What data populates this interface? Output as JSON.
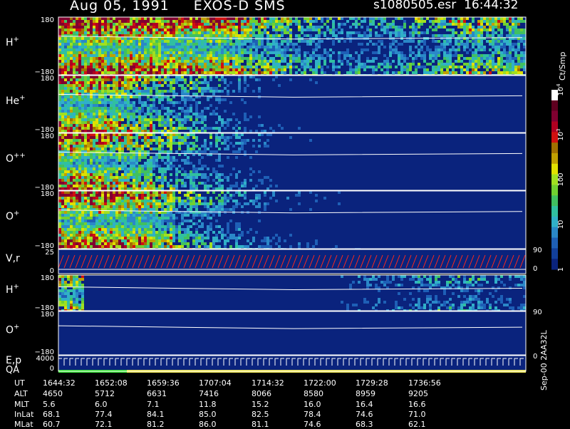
{
  "header": {
    "date": "Aug 05, 1991",
    "instrument": "EXOS-D SMS",
    "file": "s1080505.esr",
    "time": "16:44:32"
  },
  "colors": {
    "background": "#000000",
    "panel_fill": "#0a237d",
    "line": "#ffffff",
    "velocity_line": "#ff2a1a",
    "qa_good": "#33dd33",
    "qa_fair": "#e8e050"
  },
  "colorbar": {
    "unit": "Ct/Smp",
    "tick_labels": [
      {
        "text": "1",
        "value": 1
      },
      {
        "text": "10",
        "value": 10
      },
      {
        "text": "100",
        "value": 100
      },
      {
        "text": "10",
        "sup": "3",
        "value": 1000
      },
      {
        "text": "10",
        "sup": "4",
        "value": 10000
      }
    ],
    "colors": [
      "#0a237d",
      "#123f9a",
      "#1e5fb6",
      "#2a88c8",
      "#30b0c8",
      "#30c0a0",
      "#40c060",
      "#70d030",
      "#a0e020",
      "#e0e000",
      "#c0a000",
      "#a07000",
      "#d01010",
      "#b00020",
      "#800030",
      "#600020",
      "#ffffff"
    ]
  },
  "chart_data": [
    {
      "type": "heatmap",
      "panel": "H+ (upper)",
      "label": "H",
      "sup": "+",
      "ylim": [
        -180,
        180
      ],
      "y_ticks": [
        180,
        -180
      ],
      "intensity_profile": [
        0.9,
        0.9,
        0.9,
        0.85,
        0.85,
        0.8,
        0.75,
        0.7,
        0.6,
        0.5,
        0.4,
        0.35,
        0.3,
        0.3,
        0.35,
        0.4,
        0.5,
        0.6,
        0.55,
        0.5
      ]
    },
    {
      "type": "heatmap",
      "panel": "He+",
      "label": "He",
      "sup": "+",
      "ylim": [
        -180,
        180
      ],
      "y_ticks": [
        180,
        -180
      ],
      "intensity_profile": [
        0.8,
        0.75,
        0.7,
        0.6,
        0.5,
        0.4,
        0.3,
        0.2,
        0.15,
        0.1,
        0.1,
        0.08,
        0.05,
        0.05,
        0.05,
        0.05,
        0.04,
        0.04,
        0.03,
        0.03
      ]
    },
    {
      "type": "heatmap",
      "panel": "O++",
      "label": "O",
      "sup": "++",
      "ylim": [
        -180,
        180
      ],
      "y_ticks": [
        180,
        -180
      ],
      "intensity_profile": [
        0.85,
        0.8,
        0.7,
        0.6,
        0.5,
        0.4,
        0.3,
        0.22,
        0.15,
        0.1,
        0.08,
        0.06,
        0.05,
        0.05,
        0.04,
        0.04,
        0.03,
        0.03,
        0.02,
        0.02
      ]
    },
    {
      "type": "heatmap",
      "panel": "O+ (upper)",
      "label": "O",
      "sup": "+",
      "ylim": [
        -180,
        180
      ],
      "y_ticks": [
        180,
        -180
      ],
      "intensity_profile": [
        0.85,
        0.85,
        0.8,
        0.75,
        0.6,
        0.45,
        0.35,
        0.25,
        0.2,
        0.15,
        0.12,
        0.1,
        0.08,
        0.06,
        0.05,
        0.05,
        0.04,
        0.04,
        0.03,
        0.03
      ]
    },
    {
      "type": "line",
      "panel": "V,r",
      "label": "V,r",
      "ylim": [
        0,
        25
      ],
      "y_ticks": [
        25,
        0
      ],
      "right_ticks": [
        90,
        0
      ],
      "series_shape": "sawtooth"
    },
    {
      "type": "heatmap",
      "panel": "H+ (lower)",
      "label": "H",
      "sup": "+",
      "ylim": [
        -180,
        180
      ],
      "y_ticks": [
        180,
        -180
      ],
      "intensity_profile": [
        0.6,
        0.0,
        0.0,
        0.0,
        0.0,
        0.0,
        0.0,
        0.0,
        0.0,
        0.0,
        0.0,
        0.05,
        0.15,
        0.2,
        0.2,
        0.25,
        0.3,
        0.3,
        0.25,
        0.2
      ]
    },
    {
      "type": "heatmap",
      "panel": "O+ (lower)",
      "label": "O",
      "sup": "+",
      "ylim": [
        -180,
        180
      ],
      "y_ticks": [
        180,
        -180
      ],
      "right_ticks": [
        90
      ],
      "intensity_profile": [
        0,
        0,
        0,
        0,
        0,
        0,
        0,
        0,
        0,
        0,
        0,
        0,
        0,
        0,
        0,
        0,
        0,
        0,
        0,
        0
      ]
    },
    {
      "type": "line",
      "panel": "E,p QA",
      "label": "E,p",
      "label2": "QA",
      "ylim": [
        0,
        4000
      ],
      "y_ticks": [
        4000,
        0
      ],
      "right_ticks": [
        0
      ],
      "series_shape": "steps"
    }
  ],
  "ephemeris": {
    "row_labels": [
      "UT",
      "ALT",
      "MLT",
      "InLat",
      "MLat"
    ],
    "columns": [
      {
        "UT": "1644:32",
        "ALT": "4650",
        "MLT": "5.6",
        "InLat": "68.1",
        "MLat": "60.7"
      },
      {
        "UT": "1652:08",
        "ALT": "5712",
        "MLT": "6.0",
        "InLat": "77.4",
        "MLat": "72.1"
      },
      {
        "UT": "1659:36",
        "ALT": "6631",
        "MLT": "7.1",
        "InLat": "84.1",
        "MLat": "81.2"
      },
      {
        "UT": "1707:04",
        "ALT": "7416",
        "MLT": "11.8",
        "InLat": "85.0",
        "MLat": "86.0"
      },
      {
        "UT": "1714:32",
        "ALT": "8066",
        "MLT": "15.2",
        "InLat": "82.5",
        "MLat": "81.1"
      },
      {
        "UT": "1722:00",
        "ALT": "8580",
        "MLT": "16.0",
        "InLat": "78.4",
        "MLat": "74.6"
      },
      {
        "UT": "1729:28",
        "ALT": "8959",
        "MLT": "16.4",
        "InLat": "74.6",
        "MLat": "68.3"
      },
      {
        "UT": "1736:56",
        "ALT": "9205",
        "MLT": "16.6",
        "InLat": "71.0",
        "MLat": "62.1"
      }
    ]
  },
  "footer": "Sep-00  2AA32L"
}
